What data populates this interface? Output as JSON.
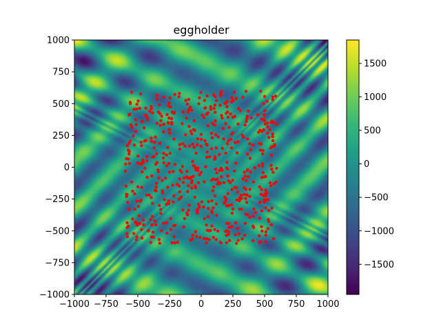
{
  "chart_data": {
    "type": "heatmap",
    "title": "eggholder",
    "xlabel": "",
    "ylabel": "",
    "xlim": [
      -1000,
      1000
    ],
    "ylim": [
      -1000,
      1000
    ],
    "x_ticks": [
      -1000,
      -750,
      -500,
      -250,
      0,
      250,
      500,
      750,
      1000
    ],
    "y_ticks": [
      -1000,
      -750,
      -500,
      -250,
      0,
      250,
      500,
      750,
      1000
    ],
    "x_tick_labels": [
      "−1000",
      "−750",
      "−500",
      "−250",
      "0",
      "250",
      "500",
      "750",
      "1000"
    ],
    "y_tick_labels": [
      "−1000",
      "−750",
      "−500",
      "−250",
      "0",
      "250",
      "500",
      "750",
      "1000"
    ],
    "grid": false,
    "colormap": "viridis",
    "colorbar": {
      "range": [
        -1950,
        1850
      ],
      "ticks": [
        -1500,
        -1000,
        -500,
        0,
        500,
        1000,
        1500
      ],
      "tick_labels": [
        "−1500",
        "−1000",
        "−500",
        "0",
        "500",
        "1000",
        "1500"
      ]
    },
    "scatter": {
      "color": "#ff0000",
      "region_x": [
        -600,
        600
      ],
      "region_y": [
        -600,
        600
      ],
      "approx_count": 600
    }
  }
}
